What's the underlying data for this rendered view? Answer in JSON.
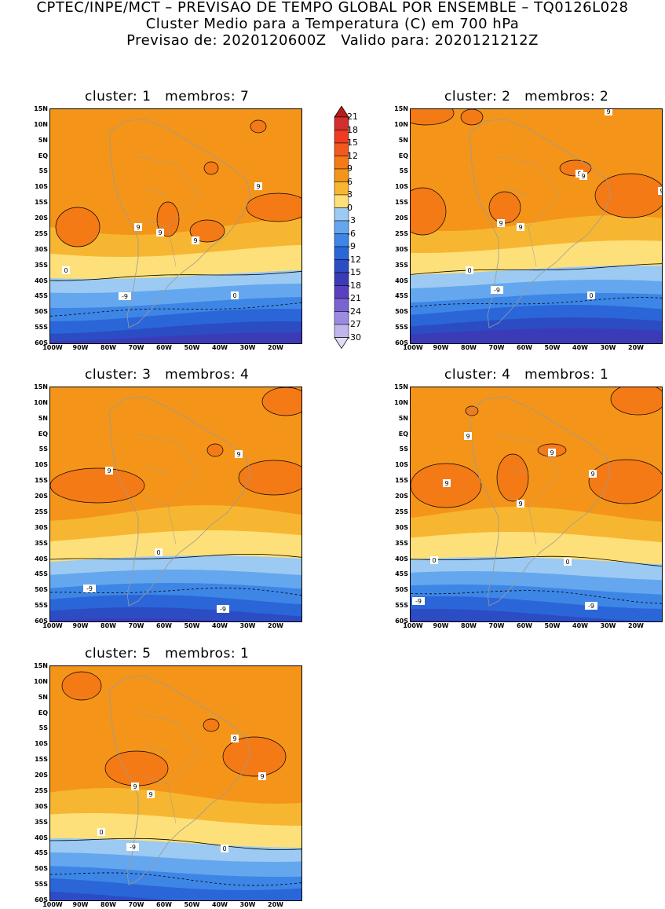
{
  "header": {
    "line1": "CPTEC/INPE/MCT – PREVISAO DE TEMPO GLOBAL POR ENSEMBLE – TQ0126L028",
    "line2": "Cluster Medio para a Temperatura (C) em 700 hPa",
    "line3": "Previsao de: 2020120600Z   Valido para: 2020121212Z"
  },
  "panels": [
    {
      "title": "cluster: 1   membros: 7",
      "labels": [
        "0",
        "0",
        "-9",
        "9",
        "9",
        "9",
        "9"
      ]
    },
    {
      "title": "cluster: 2   membros: 2",
      "labels": [
        "0",
        "0",
        "-9",
        "9",
        "9",
        "9",
        "9",
        "9",
        "9"
      ]
    },
    {
      "title": "cluster: 3   membros: 4",
      "labels": [
        "0",
        "-9",
        "-9",
        "9",
        "9"
      ]
    },
    {
      "title": "cluster: 4   membros: 1",
      "labels": [
        "0",
        "0",
        "-9",
        "-9",
        "9",
        "9",
        "9",
        "9",
        "9"
      ]
    },
    {
      "title": "cluster: 5   membros: 1",
      "labels": [
        "0",
        "0",
        "-9",
        "9",
        "9",
        "9",
        "9"
      ]
    }
  ],
  "axes": {
    "lat_ticks": [
      "15N",
      "10N",
      "5N",
      "EQ",
      "5S",
      "10S",
      "15S",
      "20S",
      "25S",
      "30S",
      "35S",
      "40S",
      "45S",
      "50S",
      "55S",
      "60S"
    ],
    "lon_ticks": [
      "100W",
      "90W",
      "80W",
      "70W",
      "60W",
      "50W",
      "40W",
      "30W",
      "20W"
    ]
  },
  "legend": {
    "levels": [
      "21",
      "18",
      "15",
      "12",
      "9",
      "6",
      "3",
      "0",
      "-3",
      "-6",
      "-9",
      "-12",
      "-15",
      "-18",
      "-21",
      "-24",
      "-27",
      "-30"
    ],
    "colors": [
      "#b71c1c",
      "#d32f2f",
      "#ef3b24",
      "#f05a1e",
      "#f47a16",
      "#f4951a",
      "#f7b631",
      "#fde07a",
      "#9ccaf2",
      "#64a7ee",
      "#3d86e6",
      "#2a66d8",
      "#2c4cc4",
      "#3b3bb8",
      "#5a3fc0",
      "#7a63d2",
      "#9c8be0",
      "#c0b5ec",
      "#e2dcf6"
    ]
  },
  "colors": {
    "land_outline": "#9a9a9a",
    "contour": "#000000"
  }
}
